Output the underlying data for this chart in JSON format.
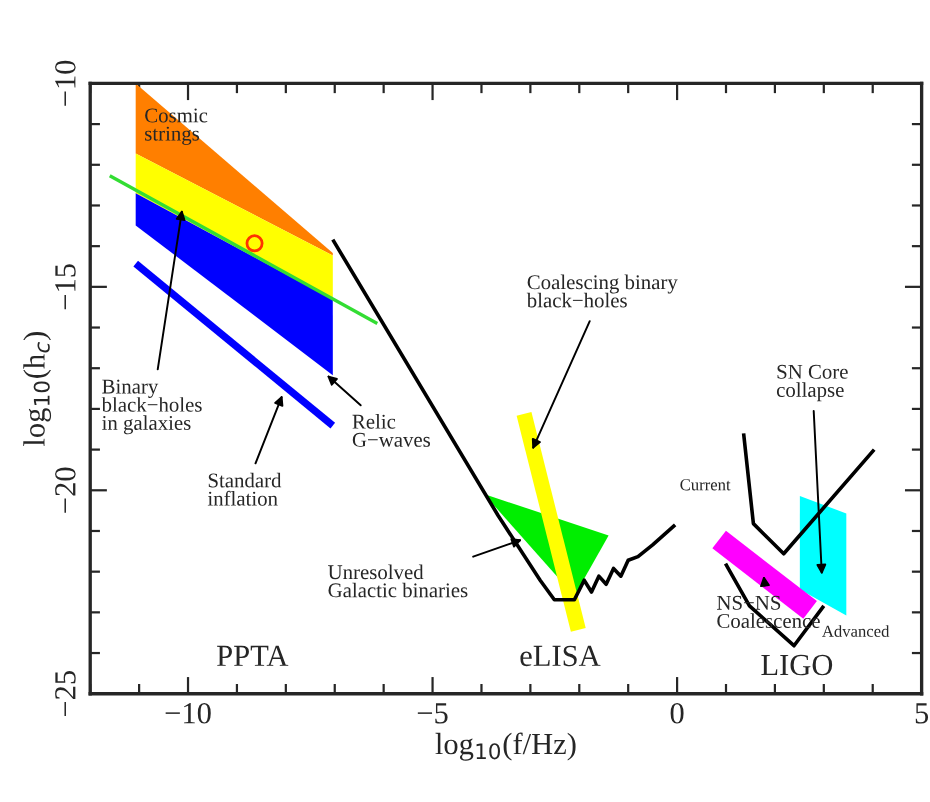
{
  "chart_data": {
    "type": "line",
    "xlabel": "log$_{10}$(f/Hz)",
    "ylabel": "log$_{10}$(h$_{c}$)",
    "xlim": [
      -12,
      5
    ],
    "ylim": [
      -25,
      -10
    ],
    "xticks": [
      {
        "value": -12,
        "label": null
      },
      {
        "value": -11,
        "label": null
      },
      {
        "value": -10,
        "label": "−10"
      },
      {
        "value": -9,
        "label": null
      },
      {
        "value": -8,
        "label": null
      },
      {
        "value": -7,
        "label": null
      },
      {
        "value": -6,
        "label": null
      },
      {
        "value": -5,
        "label": "−5"
      },
      {
        "value": -4,
        "label": null
      },
      {
        "value": -3,
        "label": null
      },
      {
        "value": -2,
        "label": null
      },
      {
        "value": -1,
        "label": null
      },
      {
        "value": 0,
        "label": "0"
      },
      {
        "value": 1,
        "label": null
      },
      {
        "value": 2,
        "label": null
      },
      {
        "value": 3,
        "label": null
      },
      {
        "value": 4,
        "label": null
      },
      {
        "value": 5,
        "label": "5"
      }
    ],
    "yticks": [
      {
        "value": -25,
        "label": "−25"
      },
      {
        "value": -24,
        "label": null
      },
      {
        "value": -23,
        "label": null
      },
      {
        "value": -22,
        "label": null
      },
      {
        "value": -21,
        "label": null
      },
      {
        "value": -20,
        "label": "−20"
      },
      {
        "value": -19,
        "label": null
      },
      {
        "value": -18,
        "label": null
      },
      {
        "value": -17,
        "label": null
      },
      {
        "value": -16,
        "label": null
      },
      {
        "value": -15,
        "label": "−15"
      },
      {
        "value": -14,
        "label": null
      },
      {
        "value": -13,
        "label": null
      },
      {
        "value": -12,
        "label": null
      },
      {
        "value": -11,
        "label": null
      },
      {
        "value": -10,
        "label": "−10"
      }
    ],
    "series": [
      {
        "type": "area",
        "color": "#ff7f00",
        "x": [
          -11.07,
          -7.04,
          -7.04,
          -11.07
        ],
        "values": [
          -10.0,
          -14.17,
          -14.23,
          -11.72
        ]
      },
      {
        "type": "area",
        "color": "#ffff00",
        "x": [
          -11.07,
          -7.04,
          -7.04,
          -11.07
        ],
        "values": [
          -11.72,
          -14.23,
          -15.31,
          -12.7
        ]
      },
      {
        "type": "area",
        "color": "#0000ff",
        "x": [
          -11.07,
          -7.04,
          -7.04,
          -11.07
        ],
        "values": [
          -12.7,
          -15.31,
          -17.17,
          -13.49
        ]
      },
      {
        "color": "#33dd33",
        "x": [
          -11.6,
          -6.13
        ],
        "values": [
          -12.27,
          -15.9
        ]
      },
      {
        "type": "scatter",
        "color": "#ff3300",
        "marker": "circle",
        "x": [
          -8.64
        ],
        "values": [
          -13.93
        ]
      },
      {
        "color": "#0000ff",
        "x": [
          -11.07,
          -7.04
        ],
        "values": [
          -14.43,
          -18.41
        ]
      },
      {
        "type": "area",
        "color": "#00ee00",
        "x": [
          -3.95,
          -1.4,
          -2.1
        ],
        "values": [
          -20.09,
          -21.11,
          -22.6
        ]
      },
      {
        "color": "#ffff00",
        "x": [
          -3.13,
          -2.02
        ],
        "values": [
          -18.12,
          -23.43
        ]
      },
      {
        "color": "#000000",
        "x": [
          -7.04,
          -3.66,
          -2.8,
          -2.51,
          -2.1,
          -1.9,
          -1.75,
          -1.6,
          -1.45,
          -1.3,
          -1.15,
          -1.0,
          -0.8,
          -0.5,
          -0.04
        ],
        "values": [
          -13.84,
          -20.62,
          -22.21,
          -22.69,
          -22.69,
          -22.21,
          -22.5,
          -22.11,
          -22.31,
          -21.92,
          -22.11,
          -21.72,
          -21.63,
          -21.34,
          -20.85
        ]
      },
      {
        "color": "#ff00ff",
        "x": [
          0.86,
          2.72
        ],
        "values": [
          -21.21,
          -22.94
        ]
      },
      {
        "type": "area",
        "color": "#00ffff",
        "x": [
          2.51,
          3.46,
          3.46,
          2.51
        ],
        "values": [
          -20.14,
          -20.57,
          -23.08,
          -22.44
        ]
      },
      {
        "color": "#000000",
        "x": [
          1.36,
          1.56,
          2.18,
          4.03
        ],
        "values": [
          -18.6,
          -20.82,
          -21.56,
          -19.0
        ]
      },
      {
        "color": "#000000",
        "x": [
          0.99,
          1.48,
          2.39,
          3.0
        ],
        "values": [
          -21.8,
          -22.84,
          -23.82,
          -22.84
        ]
      }
    ],
    "annotations": [
      "Cosmic\nstrings",
      {
        "text": "Binary\nblack−holes\nin galaxies",
        "x": -10.12,
        "y": -13.1
      },
      {
        "text": "Relic\nG−waves",
        "x": -7.16,
        "y": -17.17
      },
      {
        "text": "Standard\ninflation",
        "x": -8.07,
        "y": -17.66
      },
      {
        "text": "Unresolved\nGalactic binaries",
        "x": -3.17,
        "y": -21.21
      },
      {
        "text": "Coalescing binary\nblack−holes",
        "x": -2.96,
        "y": -19.0
      },
      "SN Core\ncollapse",
      "Current",
      {
        "text": "NS−NS\nCoalescence",
        "x": 1.77,
        "y": -22.1
      },
      "Advanced",
      "PPTA",
      "eLISA",
      "LIGO"
    ]
  }
}
